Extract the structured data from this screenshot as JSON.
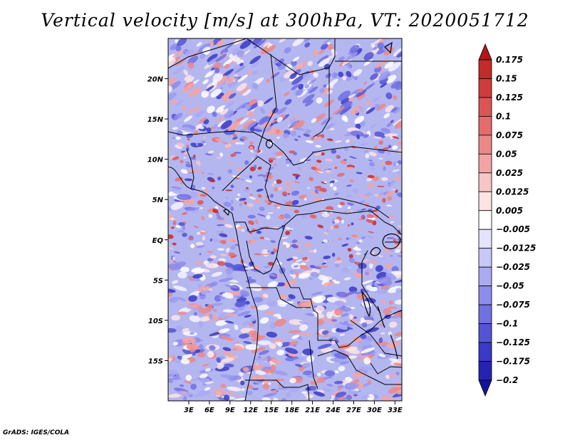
{
  "title": "Vertical velocity [m/s] at 300hPa, VT: 2020051712",
  "footer": "GrADS: IGES/COLA",
  "map": {
    "region": "Central Africa",
    "lon_range": [
      0,
      34
    ],
    "lat_range": [
      -20,
      25
    ],
    "lat_labels": [
      "20N",
      "15N",
      "10N",
      "5N",
      "EQ",
      "5S",
      "10S",
      "15S"
    ],
    "lat_values": [
      20,
      15,
      10,
      5,
      0,
      -5,
      -10,
      -15
    ],
    "lon_labels": [
      "3E",
      "6E",
      "9E",
      "12E",
      "15E",
      "18E",
      "21E",
      "24E",
      "27E",
      "30E",
      "33E"
    ],
    "lon_values": [
      3,
      6,
      9,
      12,
      15,
      18,
      21,
      24,
      27,
      30,
      33
    ]
  },
  "colorbar": {
    "labels": [
      "0.175",
      "0.15",
      "0.125",
      "0.1",
      "0.075",
      "0.05",
      "0.025",
      "0.0125",
      "0.005",
      "−0.005",
      "−0.0125",
      "−0.025",
      "−0.05",
      "−0.075",
      "−0.1",
      "−0.125",
      "−0.175",
      "−0.2"
    ],
    "colors": [
      "#b01818",
      "#c42a2a",
      "#d03c3c",
      "#dc5454",
      "#e46c6c",
      "#ec8888",
      "#f2a4a4",
      "#f8c4c4",
      "#fce4e4",
      "#ffffff",
      "#e4e4fc",
      "#c8c8f8",
      "#aaaaf2",
      "#8c8cec",
      "#7070e2",
      "#5454d4",
      "#3a3ac6",
      "#2424b0",
      "#14149a"
    ]
  }
}
